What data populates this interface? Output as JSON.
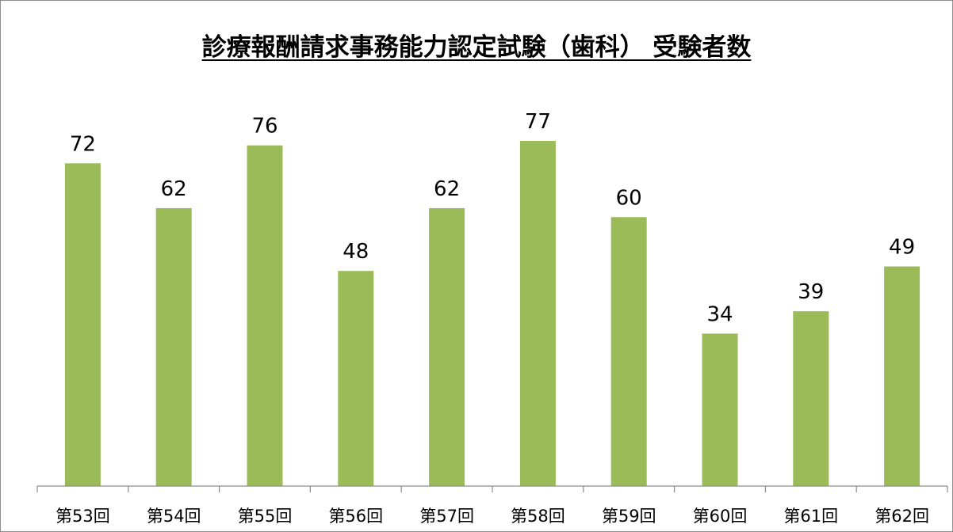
{
  "chart_data": {
    "type": "bar",
    "title": "診療報酬請求事務能力認定試験（歯科） 受験者数",
    "categories": [
      "第53回",
      "第54回",
      "第55回",
      "第56回",
      "第57回",
      "第58回",
      "第59回",
      "第60回",
      "第61回",
      "第62回"
    ],
    "values": [
      72,
      62,
      76,
      48,
      62,
      77,
      60,
      34,
      39,
      49
    ],
    "xlabel": "",
    "ylabel": "",
    "ylim": [
      0,
      77
    ],
    "grid": false,
    "legend": "none",
    "colors": {
      "bar": "#9bbb59",
      "axis": "#8c8c8c"
    }
  }
}
